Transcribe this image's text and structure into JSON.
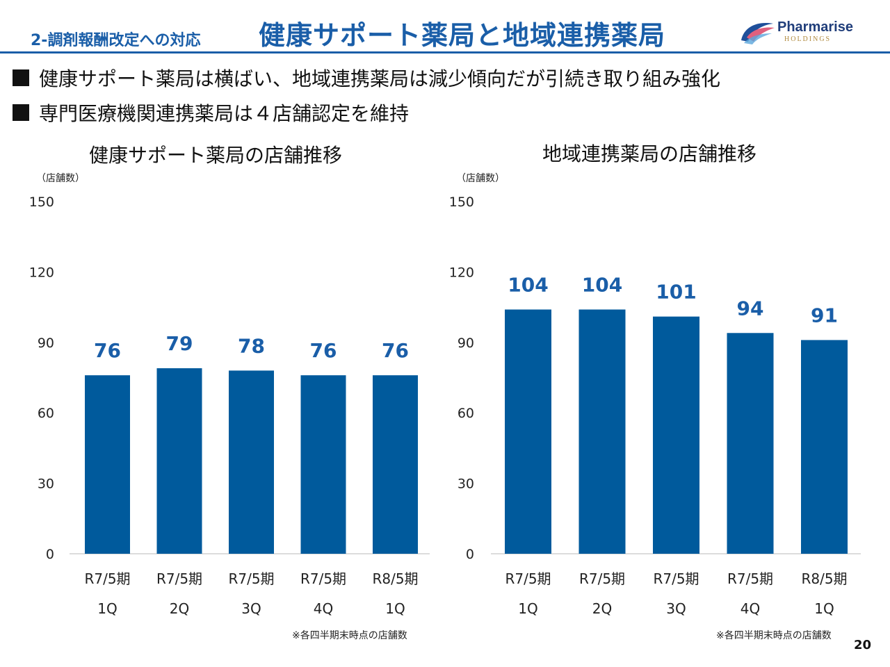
{
  "header": {
    "section": "2-調剤報酬改定への対応",
    "title": "健康サポート薬局と地域連携薬局",
    "logo_text": "Pharmarise",
    "logo_sub": "HOLDINGS"
  },
  "bullets": [
    "健康サポート薬局は横ばい、地域連携薬局は減少傾向だが引続き取り組み強化",
    "専門医療機関連携薬局は４店舗認定を維持"
  ],
  "colors": {
    "accent": "#1a5ea8",
    "bar": "#005a9c",
    "label": "#1a5ea8"
  },
  "chart_data": [
    {
      "type": "bar",
      "title": "健康サポート薬局の店舗推移",
      "ylabel": "（店舗数）",
      "categories": [
        [
          "R7/5期",
          "1Q"
        ],
        [
          "R7/5期",
          "2Q"
        ],
        [
          "R7/5期",
          "3Q"
        ],
        [
          "R7/5期",
          "4Q"
        ],
        [
          "R8/5期",
          "1Q"
        ]
      ],
      "values": [
        76,
        79,
        78,
        76,
        76
      ],
      "yticks": [
        0,
        30,
        60,
        90,
        120,
        150
      ],
      "ylim": [
        0,
        150
      ],
      "note": "※各四半期末時点の店舗数"
    },
    {
      "type": "bar",
      "title": "地域連携薬局の店舗推移",
      "ylabel": "（店舗数）",
      "categories": [
        [
          "R7/5期",
          "1Q"
        ],
        [
          "R7/5期",
          "2Q"
        ],
        [
          "R7/5期",
          "3Q"
        ],
        [
          "R7/5期",
          "4Q"
        ],
        [
          "R8/5期",
          "1Q"
        ]
      ],
      "values": [
        104,
        104,
        101,
        94,
        91
      ],
      "yticks": [
        0,
        30,
        60,
        90,
        120,
        150
      ],
      "ylim": [
        0,
        150
      ],
      "note": "※各四半期末時点の店舗数"
    }
  ],
  "page_number": "20"
}
